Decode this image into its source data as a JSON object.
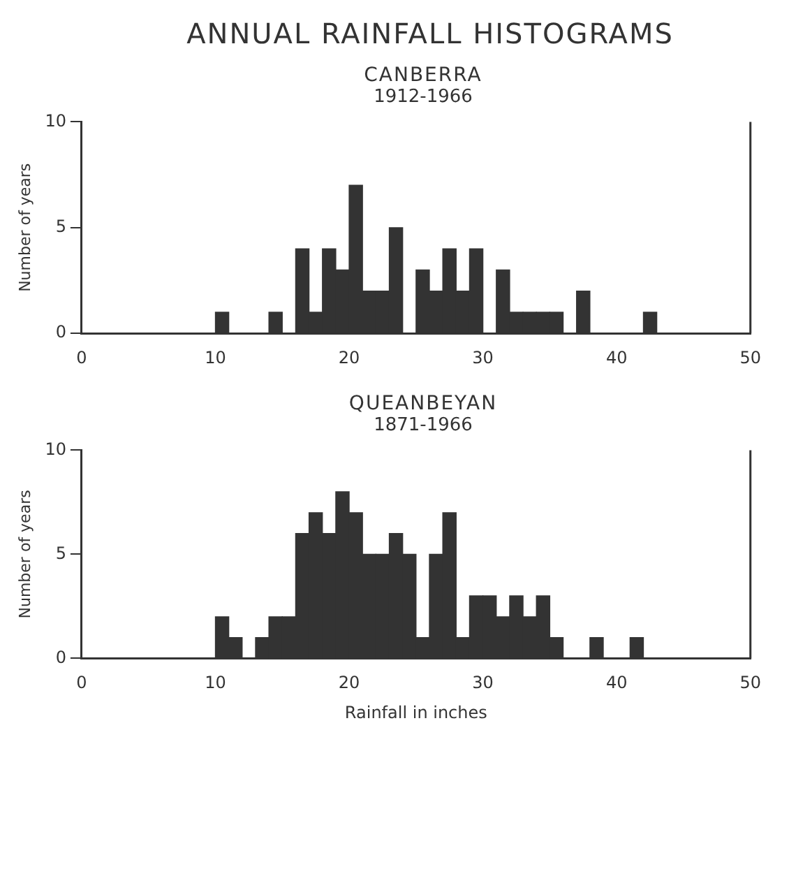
{
  "chart_data": [
    {
      "type": "histogram",
      "title": "CANBERRA",
      "subtitle": "1912-1966",
      "ylabel": "Number of years",
      "annotations": [
        "ANNUAL RAINFALL HISTOGRAMS"
      ],
      "bins": [
        10,
        11,
        12,
        13,
        14,
        15,
        16,
        17,
        18,
        19,
        20,
        21,
        22,
        23,
        24,
        25,
        26,
        27,
        28,
        29,
        30,
        31,
        32,
        33,
        34,
        35,
        36,
        37,
        38,
        39,
        40,
        41,
        42,
        43
      ],
      "values": [
        1,
        0,
        0,
        0,
        1,
        0,
        4,
        1,
        4,
        3,
        7,
        2,
        2,
        5,
        0,
        3,
        2,
        4,
        2,
        4,
        0,
        3,
        1,
        1,
        1,
        1,
        0,
        2,
        0,
        0,
        0,
        0,
        1
      ],
      "color": "#333333",
      "xlim": [
        0,
        50
      ],
      "xticks": [
        0,
        10,
        20,
        30,
        40,
        50
      ],
      "ylim": [
        0,
        10
      ],
      "yticks": [
        0,
        5,
        10
      ],
      "grid": false,
      "legend": false
    },
    {
      "type": "histogram",
      "title": "QUEANBEYAN",
      "subtitle": "1871-1966",
      "xlabel": "Rainfall in inches",
      "ylabel": "Number of years",
      "bins": [
        10,
        11,
        12,
        13,
        14,
        15,
        16,
        17,
        18,
        19,
        20,
        21,
        22,
        23,
        24,
        25,
        26,
        27,
        28,
        29,
        30,
        31,
        32,
        33,
        34,
        35,
        36,
        37,
        38,
        39,
        40,
        41,
        42
      ],
      "values": [
        2,
        1,
        0,
        1,
        2,
        2,
        6,
        7,
        6,
        8,
        7,
        5,
        5,
        6,
        5,
        1,
        5,
        7,
        1,
        3,
        3,
        2,
        3,
        2,
        3,
        1,
        0,
        0,
        1,
        0,
        0,
        1
      ],
      "color": "#333333",
      "xlim": [
        0,
        50
      ],
      "xticks": [
        0,
        10,
        20,
        30,
        40,
        50
      ],
      "ylim": [
        0,
        10
      ],
      "yticks": [
        0,
        5,
        10
      ],
      "grid": false,
      "legend": false
    }
  ]
}
